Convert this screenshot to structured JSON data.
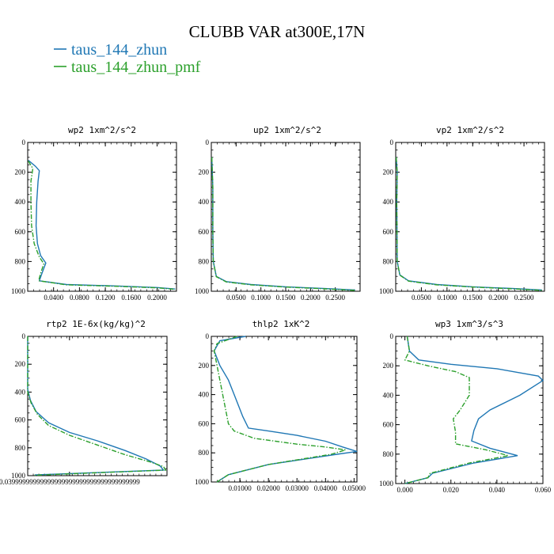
{
  "title": "CLUBB VAR at300E,17N",
  "legend": [
    {
      "label": "taus_144_zhun",
      "color": "#1f77b4",
      "dash": "solid"
    },
    {
      "label": "taus_144_zhun_pmf",
      "color": "#2ca02c",
      "dash": "dashdot"
    }
  ],
  "chart_data": [
    {
      "type": "line",
      "title": "wp2  1xm^2/s^2",
      "xlim": [
        0,
        0.23
      ],
      "ylim": [
        1000,
        0
      ],
      "xticks": [
        "0.0400",
        "0.0800",
        "0.1200",
        "0.1600",
        "0.2000"
      ],
      "yticks": [
        "0",
        "200",
        "400",
        "600",
        "800",
        "1000"
      ],
      "series": [
        {
          "name": "taus_144_zhun",
          "points": [
            [
              0.001,
              120
            ],
            [
              0.012,
              160
            ],
            [
              0.018,
              190
            ],
            [
              0.016,
              260
            ],
            [
              0.014,
              400
            ],
            [
              0.013,
              560
            ],
            [
              0.015,
              680
            ],
            [
              0.02,
              760
            ],
            [
              0.028,
              810
            ],
            [
              0.022,
              880
            ],
            [
              0.018,
              930
            ],
            [
              0.06,
              955
            ],
            [
              0.14,
              965
            ],
            [
              0.2,
              975
            ],
            [
              0.228,
              985
            ]
          ]
        },
        {
          "name": "taus_144_zhun_pmf",
          "points": [
            [
              0.001,
              125
            ],
            [
              0.008,
              175
            ],
            [
              0.005,
              260
            ],
            [
              0.005,
              400
            ],
            [
              0.006,
              560
            ],
            [
              0.01,
              680
            ],
            [
              0.018,
              770
            ],
            [
              0.025,
              815
            ],
            [
              0.02,
              880
            ],
            [
              0.017,
              930
            ],
            [
              0.06,
              957
            ],
            [
              0.14,
              967
            ],
            [
              0.2,
              977
            ],
            [
              0.228,
              987
            ]
          ]
        }
      ]
    },
    {
      "type": "line",
      "title": "up2  1xm^2/s^2",
      "xlim": [
        0,
        0.3
      ],
      "ylim": [
        1000,
        0
      ],
      "xticks": [
        "0.0500",
        "0.1000",
        "0.1500",
        "0.2000",
        "0.2500"
      ],
      "yticks": [
        "0",
        "200",
        "400",
        "600",
        "800",
        "1000"
      ],
      "series": [
        {
          "name": "taus_144_zhun",
          "points": [
            [
              0.001,
              100
            ],
            [
              0.003,
              300
            ],
            [
              0.003,
              600
            ],
            [
              0.004,
              800
            ],
            [
              0.01,
              900
            ],
            [
              0.03,
              935
            ],
            [
              0.08,
              955
            ],
            [
              0.15,
              970
            ],
            [
              0.23,
              982
            ],
            [
              0.29,
              992
            ]
          ]
        },
        {
          "name": "taus_144_zhun_pmf",
          "points": [
            [
              0.001,
              100
            ],
            [
              0.003,
              300
            ],
            [
              0.003,
              600
            ],
            [
              0.004,
              800
            ],
            [
              0.01,
              902
            ],
            [
              0.03,
              937
            ],
            [
              0.08,
              957
            ],
            [
              0.15,
              972
            ],
            [
              0.23,
              984
            ],
            [
              0.29,
              994
            ]
          ]
        }
      ]
    },
    {
      "type": "line",
      "title": "vp2  1xm^2/s^2",
      "xlim": [
        0,
        0.29
      ],
      "ylim": [
        1000,
        0
      ],
      "xticks": [
        "0.0500",
        "0.1000",
        "0.1500",
        "0.2000",
        "0.2500"
      ],
      "yticks": [
        "0",
        "200",
        "400",
        "600",
        "800",
        "1000"
      ],
      "series": [
        {
          "name": "taus_144_zhun",
          "points": [
            [
              0.001,
              100
            ],
            [
              0.003,
              200
            ],
            [
              0.002,
              400
            ],
            [
              0.003,
              800
            ],
            [
              0.008,
              890
            ],
            [
              0.025,
              930
            ],
            [
              0.08,
              955
            ],
            [
              0.15,
              970
            ],
            [
              0.23,
              982
            ],
            [
              0.285,
              992
            ]
          ]
        },
        {
          "name": "taus_144_zhun_pmf",
          "points": [
            [
              0.001,
              100
            ],
            [
              0.003,
              200
            ],
            [
              0.002,
              400
            ],
            [
              0.003,
              800
            ],
            [
              0.008,
              892
            ],
            [
              0.025,
              932
            ],
            [
              0.08,
              957
            ],
            [
              0.15,
              972
            ],
            [
              0.23,
              984
            ],
            [
              0.285,
              994
            ]
          ]
        }
      ]
    },
    {
      "type": "line",
      "title": "rtp2  1E-6x(kg/kg)^2",
      "xlim": [
        0,
        0.2
      ],
      "ylim": [
        1000,
        0
      ],
      "xticks": [
        "0.03999999999999999999999999999999999999"
      ],
      "yticks": [
        "0",
        "200",
        "400",
        "600",
        "800",
        "1000"
      ],
      "series": [
        {
          "name": "taus_144_zhun",
          "points": [
            [
              0.0,
              0
            ],
            [
              0.0,
              380
            ],
            [
              0.004,
              460
            ],
            [
              0.012,
              540
            ],
            [
              0.03,
              620
            ],
            [
              0.06,
              690
            ],
            [
              0.1,
              750
            ],
            [
              0.14,
              820
            ],
            [
              0.17,
              880
            ],
            [
              0.19,
              930
            ],
            [
              0.195,
              960
            ],
            [
              0.06,
              985
            ],
            [
              0.01,
              995
            ]
          ]
        },
        {
          "name": "taus_144_zhun_pmf",
          "points": [
            [
              0.0,
              0
            ],
            [
              0.0,
              400
            ],
            [
              0.005,
              480
            ],
            [
              0.014,
              560
            ],
            [
              0.03,
              640
            ],
            [
              0.06,
              710
            ],
            [
              0.1,
              780
            ],
            [
              0.14,
              850
            ],
            [
              0.175,
              900
            ],
            [
              0.195,
              935
            ],
            [
              0.198,
              960
            ],
            [
              0.06,
              987
            ],
            [
              0.01,
              997
            ]
          ]
        }
      ]
    },
    {
      "type": "line",
      "title": "thlp2  1xK^2",
      "xlim": [
        0,
        0.051
      ],
      "ylim": [
        1000,
        0
      ],
      "xticks": [
        "0.01000",
        "0.02000",
        "0.03000",
        "0.04000",
        "0.05000"
      ],
      "yticks": [
        "0",
        "200",
        "400",
        "600",
        "800",
        "1000"
      ],
      "series": [
        {
          "name": "taus_144_zhun",
          "points": [
            [
              0.012,
              0
            ],
            [
              0.003,
              30
            ],
            [
              0.001,
              100
            ],
            [
              0.003,
              200
            ],
            [
              0.006,
              300
            ],
            [
              0.008,
              400
            ],
            [
              0.01,
              500
            ],
            [
              0.011,
              550
            ],
            [
              0.013,
              630
            ],
            [
              0.02,
              650
            ],
            [
              0.03,
              680
            ],
            [
              0.04,
              720
            ],
            [
              0.046,
              760
            ],
            [
              0.051,
              790
            ],
            [
              0.044,
              810
            ],
            [
              0.02,
              880
            ],
            [
              0.006,
              950
            ],
            [
              0.002,
              1000
            ]
          ]
        },
        {
          "name": "taus_144_zhun_pmf",
          "points": [
            [
              0.009,
              0
            ],
            [
              0.002,
              50
            ],
            [
              0.001,
              100
            ],
            [
              0.002,
              200
            ],
            [
              0.003,
              300
            ],
            [
              0.004,
              400
            ],
            [
              0.005,
              500
            ],
            [
              0.006,
              600
            ],
            [
              0.008,
              650
            ],
            [
              0.015,
              700
            ],
            [
              0.03,
              740
            ],
            [
              0.04,
              760
            ],
            [
              0.047,
              780
            ],
            [
              0.042,
              810
            ],
            [
              0.02,
              880
            ],
            [
              0.006,
              950
            ],
            [
              0.002,
              1000
            ]
          ]
        }
      ]
    },
    {
      "type": "line",
      "title": "wp3  1xm^3/s^3",
      "xlim": [
        -0.004,
        0.06
      ],
      "ylim": [
        1000,
        0
      ],
      "xticks": [
        "0.000",
        "0.020",
        "0.040",
        "0.060"
      ],
      "yticks": [
        "0",
        "200",
        "400",
        "600",
        "800",
        "1000"
      ],
      "series": [
        {
          "name": "taus_144_zhun",
          "points": [
            [
              0.001,
              0
            ],
            [
              0.002,
              100
            ],
            [
              0.006,
              160
            ],
            [
              0.02,
              190
            ],
            [
              0.04,
              220
            ],
            [
              0.058,
              270
            ],
            [
              0.06,
              300
            ],
            [
              0.05,
              400
            ],
            [
              0.037,
              500
            ],
            [
              0.032,
              560
            ],
            [
              0.03,
              640
            ],
            [
              0.029,
              710
            ],
            [
              0.037,
              760
            ],
            [
              0.049,
              810
            ],
            [
              0.03,
              860
            ],
            [
              0.012,
              930
            ],
            [
              0.01,
              960
            ],
            [
              0.0,
              1000
            ]
          ]
        },
        {
          "name": "taus_144_zhun_pmf",
          "points": [
            [
              0.001,
              0
            ],
            [
              0.002,
              100
            ],
            [
              0.0,
              160
            ],
            [
              0.01,
              200
            ],
            [
              0.022,
              240
            ],
            [
              0.028,
              280
            ],
            [
              0.028,
              400
            ],
            [
              0.024,
              500
            ],
            [
              0.021,
              560
            ],
            [
              0.022,
              650
            ],
            [
              0.022,
              730
            ],
            [
              0.035,
              770
            ],
            [
              0.045,
              810
            ],
            [
              0.028,
              860
            ],
            [
              0.011,
              930
            ],
            [
              0.01,
              960
            ],
            [
              0.0,
              1000
            ]
          ]
        }
      ]
    }
  ]
}
